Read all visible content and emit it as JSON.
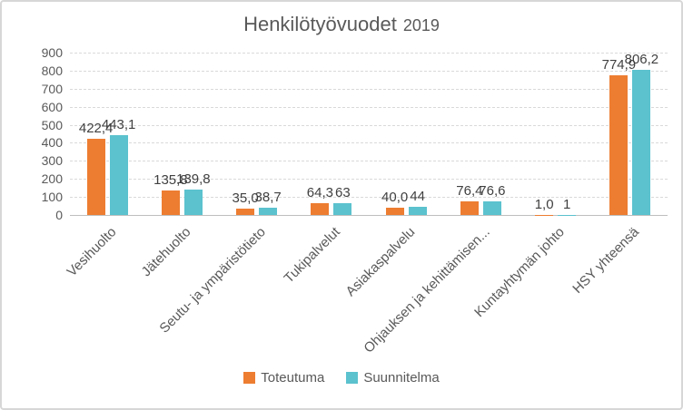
{
  "chart_data": {
    "type": "bar",
    "title": "Henkilötyövuodet 2019",
    "title_main": "Henkilötyövuodet",
    "title_year": "2019",
    "categories": [
      "Vesihuolto",
      "Jätehuolto",
      "Seutu- ja ympäristötieto",
      "Tukipalvelut",
      "Asiakaspalvelu",
      "Ohjauksen ja kehittämisen...",
      "Kuntayhtymän johto",
      "HSY yhteensä"
    ],
    "series": [
      {
        "name": "Toteutuma",
        "color": "#ED7D31",
        "values": [
          422.4,
          135.8,
          35.0,
          64.3,
          40.0,
          76.4,
          1.0,
          774.9
        ],
        "labels": [
          "422,4",
          "135,8",
          "35,0",
          "64,3",
          "40,0",
          "76,4",
          "1,0",
          "774,9"
        ]
      },
      {
        "name": "Suunnitelma",
        "color": "#5BC2CE",
        "values": [
          443.1,
          139.8,
          38.7,
          63,
          44,
          76.6,
          1,
          806.2
        ],
        "labels": [
          "443,1",
          "139,8",
          "38,7",
          "63",
          "44",
          "76,6",
          "1",
          "806,2"
        ]
      }
    ],
    "ylim": [
      0,
      900
    ],
    "ytick_step": 100,
    "yticks": [
      "0",
      "100",
      "200",
      "300",
      "400",
      "500",
      "600",
      "700",
      "800",
      "900"
    ],
    "grid": true,
    "legend_position": "bottom",
    "colors": {
      "gridline": "#D9D9D9",
      "axis_line": "#BFBFBF",
      "axis_text": "#595959",
      "value_label_text": "#404040",
      "title_text": "#595959"
    }
  }
}
